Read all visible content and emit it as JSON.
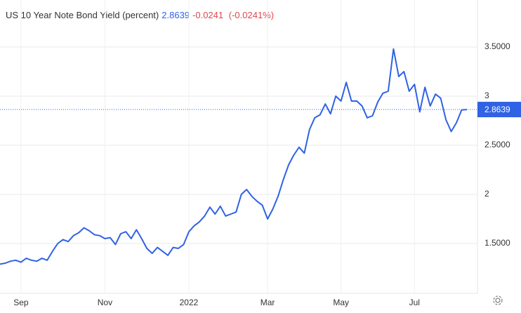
{
  "chart_data": {
    "type": "line",
    "title": "US 10 Year Note Bond Yield (percent)",
    "last_value": 2.8639,
    "change": -0.0241,
    "change_pct_label": "(-0.0241%)",
    "categories": [
      null,
      null,
      null,
      null,
      "Sep",
      null,
      null,
      null,
      null,
      null,
      null,
      null,
      null,
      null,
      null,
      null,
      null,
      null,
      null,
      null,
      "Nov",
      null,
      null,
      null,
      null,
      null,
      null,
      null,
      null,
      null,
      null,
      null,
      null,
      null,
      null,
      null,
      "2022",
      null,
      null,
      null,
      null,
      null,
      null,
      null,
      null,
      null,
      null,
      null,
      null,
      null,
      null,
      "Mar",
      null,
      null,
      null,
      null,
      null,
      null,
      null,
      null,
      null,
      null,
      null,
      null,
      null,
      "May",
      null,
      null,
      null,
      null,
      null,
      null,
      null,
      null,
      null,
      null,
      null,
      null,
      null,
      "Jul",
      null,
      null,
      null,
      null,
      null,
      null,
      null,
      null,
      null,
      null
    ],
    "series": [
      {
        "name": "US 10 Year Note Bond Yield",
        "color": "#2f62e4",
        "values": [
          1.29,
          1.3,
          1.32,
          1.33,
          1.31,
          1.35,
          1.33,
          1.32,
          1.35,
          1.33,
          1.42,
          1.5,
          1.54,
          1.52,
          1.58,
          1.61,
          1.66,
          1.63,
          1.59,
          1.58,
          1.55,
          1.56,
          1.49,
          1.6,
          1.62,
          1.55,
          1.64,
          1.55,
          1.45,
          1.4,
          1.46,
          1.42,
          1.38,
          1.46,
          1.45,
          1.49,
          1.62,
          1.68,
          1.72,
          1.78,
          1.87,
          1.8,
          1.88,
          1.78,
          1.8,
          1.82,
          2.0,
          2.05,
          1.98,
          1.93,
          1.89,
          1.75,
          1.85,
          1.98,
          2.15,
          2.3,
          2.4,
          2.48,
          2.42,
          2.66,
          2.78,
          2.81,
          2.92,
          2.82,
          3.0,
          2.95,
          3.14,
          2.95,
          2.95,
          2.9,
          2.78,
          2.8,
          2.94,
          3.03,
          3.05,
          3.48,
          3.2,
          3.25,
          3.05,
          3.12,
          2.84,
          3.09,
          2.9,
          3.02,
          2.98,
          2.76,
          2.64,
          2.73,
          2.86,
          2.8639
        ]
      }
    ],
    "ylim": [
      1,
      4
    ],
    "yticks": [
      {
        "value": 1.5,
        "label": "1.5000"
      },
      2,
      {
        "value": 2.5,
        "label": "2.5000"
      },
      3,
      {
        "value": 3.5,
        "label": "3.5000"
      }
    ],
    "grid": true
  }
}
